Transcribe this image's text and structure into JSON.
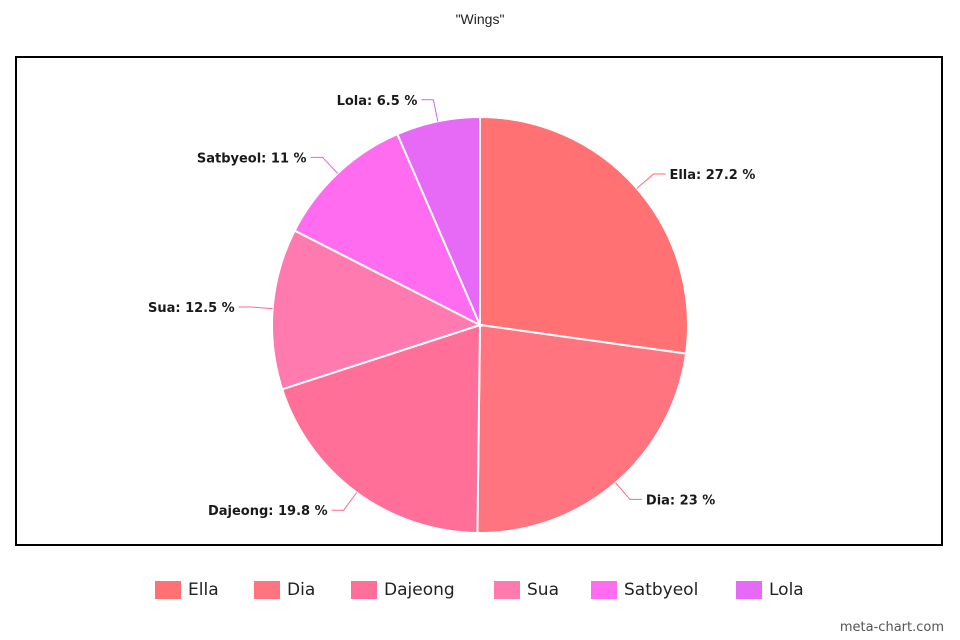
{
  "chart_data": {
    "type": "pie",
    "title": "\"Wings\"",
    "categories": [
      "Ella",
      "Dia",
      "Dajeong",
      "Sua",
      "Satbyeol",
      "Lola"
    ],
    "values": [
      27.2,
      23,
      19.8,
      12.5,
      11,
      6.5
    ],
    "labels": [
      "Ella: 27.2 %",
      "Dia: 23 %",
      "Dajeong: 19.8 %",
      "Sua: 12.5 %",
      "Satbyeol: 11 %",
      "Lola: 6.5 %"
    ],
    "colors": [
      "#ff7172",
      "#ff747e",
      "#ff6f97",
      "#ff7aae",
      "#ff6cf0",
      "#e66af5"
    ],
    "leader_colors": [
      "#ff6b6b",
      "#ff6b79",
      "#ff6690",
      "#ff66a6",
      "#f25ee6",
      "#d960ee"
    ],
    "legend_position": "bottom",
    "start_angle": "12 o'clock",
    "direction": "clockwise"
  },
  "watermark": "meta-chart.com"
}
